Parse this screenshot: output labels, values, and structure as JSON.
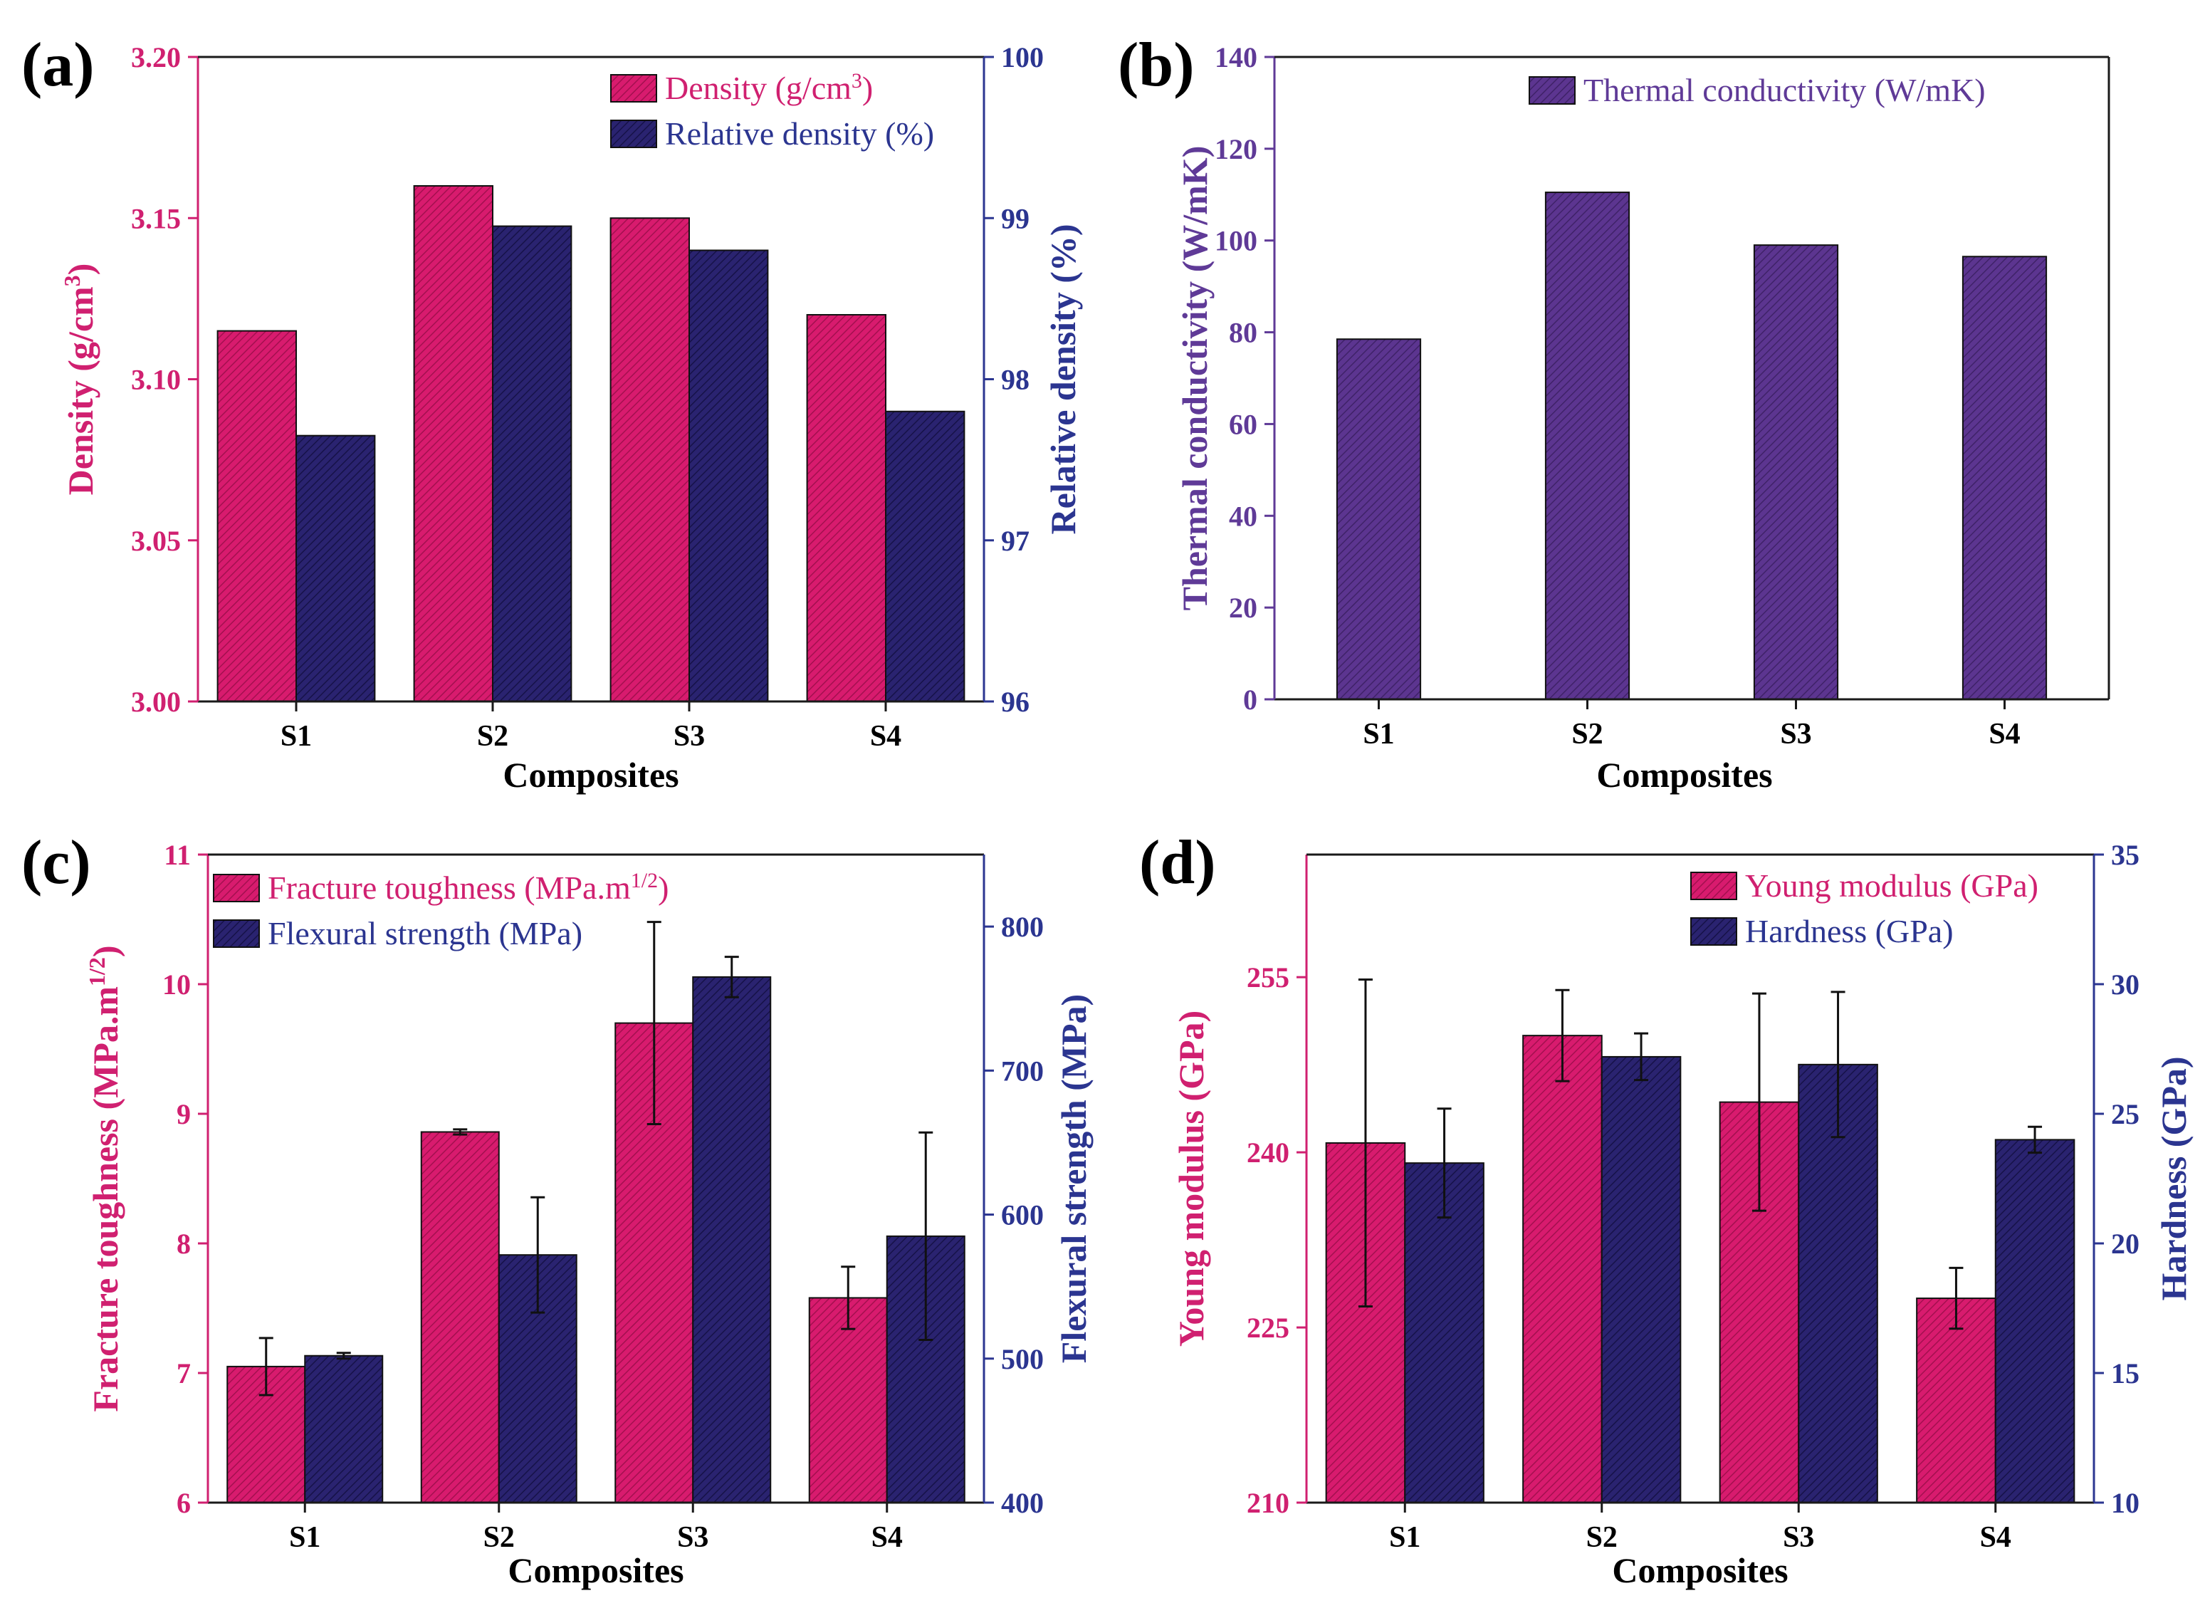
{
  "figure": {
    "colors": {
      "pink": "#d81b6e",
      "navy": "#2a2370",
      "purple": "#5c3590",
      "pink_text": "#d02070",
      "navy_text": "#2b3590",
      "purple_text": "#5f3a97",
      "axis": "#1a1a1a"
    }
  },
  "chart_data": [
    {
      "panel": "(a)",
      "type": "bar",
      "categories": [
        "S1",
        "S2",
        "S3",
        "S4"
      ],
      "xlabel": "Composites",
      "series": [
        {
          "name": "Density (g/cm3)",
          "legend": {
            "base": "Density (g/cm",
            "sup": "3",
            "close": ")"
          },
          "axis": "left",
          "color_key": "pink",
          "values": [
            3.115,
            3.16,
            3.15,
            3.12
          ]
        },
        {
          "name": "Relative density (%)",
          "legend": {
            "base": "Relative density (%)"
          },
          "axis": "right",
          "color_key": "navy",
          "values": [
            97.65,
            98.95,
            98.8,
            97.8
          ]
        }
      ],
      "yleft": {
        "label_base": "Density (g/cm",
        "label_sup": "3",
        "label_close": ")",
        "range": [
          3.0,
          3.2
        ],
        "ticks": [
          "3.00",
          "3.05",
          "3.10",
          "3.15",
          "3.20"
        ],
        "color_key": "pink_text"
      },
      "yright": {
        "label": "Relative density (%)",
        "range": [
          96,
          100
        ],
        "ticks": [
          "96",
          "97",
          "98",
          "99",
          "100"
        ],
        "color_key": "navy_text"
      },
      "legend_position": "top-right"
    },
    {
      "panel": "(b)",
      "type": "bar",
      "categories": [
        "S1",
        "S2",
        "S3",
        "S4"
      ],
      "xlabel": "Composites",
      "series": [
        {
          "name": "Thermal conductivity (W/mK)",
          "legend": {
            "base": "Thermal conductivity (W/mK)"
          },
          "axis": "left",
          "color_key": "purple",
          "values": [
            78.5,
            110.5,
            99,
            96.5
          ]
        }
      ],
      "yleft": {
        "label": "Thermal conductivity (W/mK)",
        "range": [
          0,
          140
        ],
        "ticks": [
          "0",
          "20",
          "40",
          "60",
          "80",
          "100",
          "120",
          "140"
        ],
        "color_key": "purple_text"
      },
      "legend_position": "top-right"
    },
    {
      "panel": "(c)",
      "type": "bar",
      "categories": [
        "S1",
        "S2",
        "S3",
        "S4"
      ],
      "xlabel": "Composites",
      "series": [
        {
          "name": "Fracture toughness (MPa.m1/2)",
          "legend": {
            "base": "Fracture toughness (MPa.m",
            "sup": "1/2",
            "close": ")"
          },
          "axis": "left",
          "color_key": "pink",
          "values": [
            7.05,
            8.86,
            9.7,
            7.58
          ],
          "errors": [
            0.22,
            0.02,
            0.78,
            0.24
          ]
        },
        {
          "name": "Flexural strength (MPa)",
          "legend": {
            "base": "Flexural strength (MPa)"
          },
          "axis": "right",
          "color_key": "navy",
          "values": [
            502,
            572,
            765,
            585
          ],
          "errors": [
            2,
            40,
            14,
            72
          ]
        }
      ],
      "yleft": {
        "label_base": "Fracture toughness (MPa.m",
        "label_sup": "1/2",
        "label_close": ")",
        "range": [
          6,
          11
        ],
        "ticks": [
          "6",
          "7",
          "8",
          "9",
          "10",
          "11"
        ],
        "color_key": "pink_text"
      },
      "yright": {
        "label": "Flexural strength (MPa)",
        "range": [
          400,
          850
        ],
        "ticks": [
          "400",
          "500",
          "600",
          "700",
          "800"
        ],
        "tick_values": [
          400,
          500,
          600,
          700,
          800
        ],
        "color_key": "navy_text"
      },
      "legend_position": "top-left"
    },
    {
      "panel": "(d)",
      "type": "bar",
      "categories": [
        "S1",
        "S2",
        "S3",
        "S4"
      ],
      "xlabel": "Composites",
      "series": [
        {
          "name": "Young modulus (GPa)",
          "legend": {
            "base": "Young modulus (GPa)"
          },
          "axis": "left",
          "color_key": "pink",
          "values": [
            240.8,
            250,
            244.3,
            227.5
          ],
          "errors": [
            14,
            3.9,
            9.3,
            2.6
          ]
        },
        {
          "name": "Hardness (GPa)",
          "legend": {
            "base": "Hardness (GPa)"
          },
          "axis": "right",
          "color_key": "navy",
          "values": [
            23.1,
            27.2,
            26.9,
            24
          ],
          "errors": [
            2.1,
            0.9,
            2.8,
            0.5
          ]
        }
      ],
      "yleft": {
        "label": "Young modulus (GPa)",
        "range": [
          210,
          265.5
        ],
        "ticks": [
          "210",
          "225",
          "240",
          "255"
        ],
        "tick_values": [
          210,
          225,
          240,
          255
        ],
        "color_key": "pink_text"
      },
      "yright": {
        "label": "Hardness (GPa)",
        "range": [
          10,
          35
        ],
        "ticks": [
          "10",
          "15",
          "20",
          "25",
          "30",
          "35"
        ],
        "color_key": "navy_text"
      },
      "legend_position": "top-right"
    }
  ]
}
